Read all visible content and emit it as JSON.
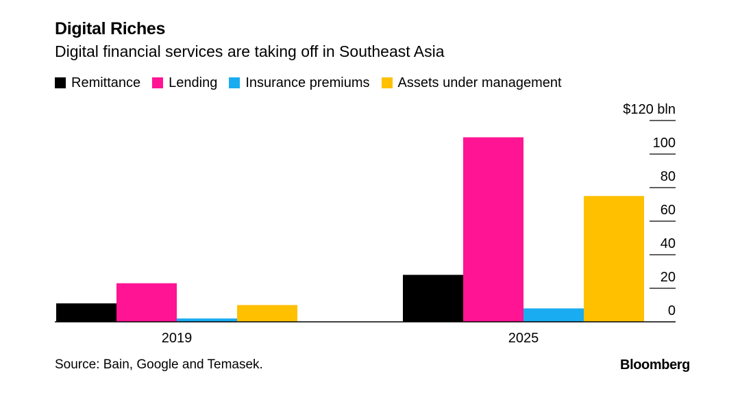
{
  "header": {
    "title": "Digital Riches",
    "subtitle": "Digital financial services are taking off in Southeast Asia"
  },
  "footer": {
    "source": "Source: Bain, Google and Temasek.",
    "brand": "Bloomberg"
  },
  "chart_data": {
    "type": "bar",
    "title": "Digital Riches",
    "subtitle": "Digital financial services are taking off in Southeast Asia",
    "xlabel": "",
    "ylabel": "",
    "categories": [
      "2019",
      "2025"
    ],
    "series": [
      {
        "name": "Remittance",
        "color": "#000000",
        "values": [
          11,
          28
        ]
      },
      {
        "name": "Lending",
        "color": "#ff1493",
        "values": [
          23,
          110
        ]
      },
      {
        "name": "Insurance premiums",
        "color": "#1aacf0",
        "values": [
          2,
          8
        ]
      },
      {
        "name": "Assets under management",
        "color": "#ffc000",
        "values": [
          10,
          75
        ]
      }
    ],
    "ylim": [
      0,
      120
    ],
    "y_ticks": [
      0,
      20,
      40,
      60,
      80,
      100,
      120
    ],
    "y_tick_labels": [
      "0",
      "20",
      "40",
      "60",
      "80",
      "100",
      "$120 bln"
    ],
    "y_axis_position": "right",
    "grid": false,
    "legend_position": "top-left"
  }
}
